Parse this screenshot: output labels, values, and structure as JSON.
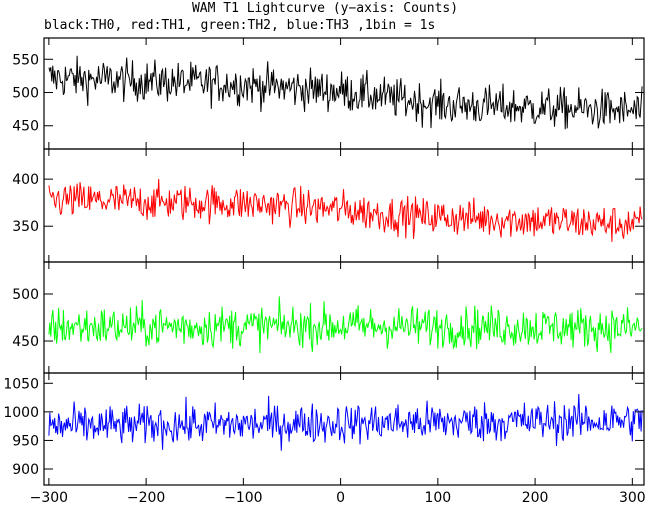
{
  "chart_data": {
    "type": "line",
    "title": "WAM T1 Lightcurve (y−axis: Counts)",
    "subtitle": "black:TH0, red:TH1, green:TH2, blue:TH3 ,1bin = 1s",
    "xlim": [
      -305,
      312
    ],
    "x_ticks": [
      "−300",
      "−200",
      "−100",
      "0",
      "100",
      "200",
      "300"
    ],
    "x_tick_values": [
      -300,
      -200,
      -100,
      0,
      100,
      200,
      300
    ],
    "panels": [
      {
        "name": "TH0",
        "color": "#000000",
        "ylim": [
          415,
          582
        ],
        "y_ticks": [
          "450",
          "500",
          "550"
        ],
        "y_tick_values": [
          450,
          500,
          550
        ],
        "trend": [
          [
            -300,
            522
          ],
          [
            -100,
            512
          ],
          [
            0,
            502
          ],
          [
            50,
            492
          ],
          [
            100,
            482
          ],
          [
            300,
            472
          ]
        ],
        "noise": 28
      },
      {
        "name": "TH1",
        "color": "#ff0000",
        "ylim": [
          312,
          432
        ],
        "y_ticks": [
          "350",
          "400"
        ],
        "y_tick_values": [
          350,
          400
        ],
        "trend": [
          [
            -300,
            378
          ],
          [
            -100,
            374
          ],
          [
            0,
            368
          ],
          [
            50,
            362
          ],
          [
            300,
            352
          ]
        ],
        "noise": 18
      },
      {
        "name": "TH2",
        "color": "#00ff00",
        "ylim": [
          416,
          534
        ],
        "y_ticks": [
          "450",
          "500"
        ],
        "y_tick_values": [
          450,
          500
        ],
        "trend": [
          [
            -300,
            465
          ],
          [
            0,
            466
          ],
          [
            300,
            464
          ]
        ],
        "noise": 20
      },
      {
        "name": "TH3",
        "color": "#0000ff",
        "ylim": [
          872,
          1068
        ],
        "y_ticks": [
          "900",
          "950",
          "1000",
          "1050"
        ],
        "y_tick_values": [
          900,
          950,
          1000,
          1050
        ],
        "trend": [
          [
            -300,
            975
          ],
          [
            0,
            980
          ],
          [
            300,
            985
          ]
        ],
        "noise": 32
      }
    ]
  }
}
